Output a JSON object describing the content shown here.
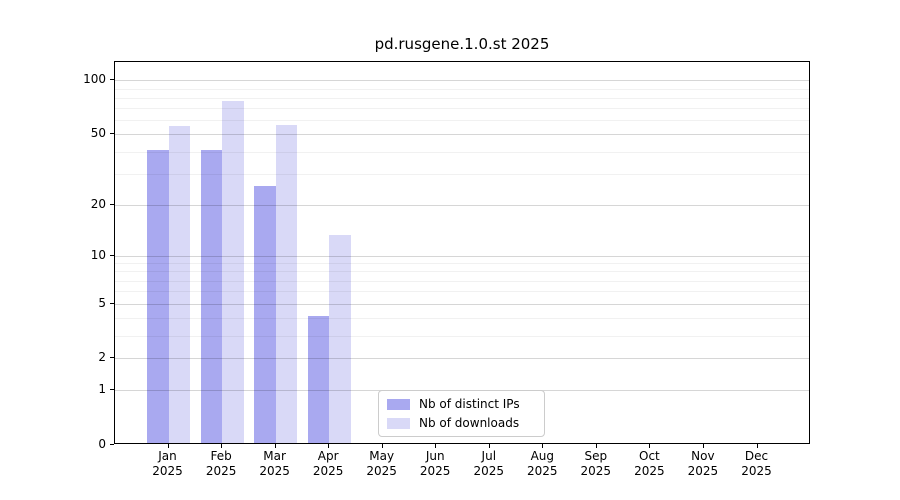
{
  "chart_data": {
    "type": "bar",
    "title": "pd.rusgene.1.0.st 2025",
    "categories": [
      "Jan",
      "Feb",
      "Mar",
      "Apr",
      "May",
      "Jun",
      "Jul",
      "Aug",
      "Sep",
      "Oct",
      "Nov",
      "Dec"
    ],
    "year_label": "2025",
    "series": [
      {
        "name": "Nb of distinct IPs",
        "color": "#a9a9f0",
        "values": [
          40,
          40,
          25,
          4,
          0,
          0,
          0,
          0,
          0,
          0,
          0,
          0
        ]
      },
      {
        "name": "Nb of downloads",
        "color": "#d9d9f7",
        "values": [
          54,
          75,
          55,
          13,
          0,
          0,
          0,
          0,
          0,
          0,
          0,
          0
        ]
      }
    ],
    "yscale": "log10(1+v)",
    "yticks": [
      0,
      1,
      2,
      5,
      10,
      20,
      50,
      100
    ],
    "minor_gridlines": [
      3,
      4,
      6,
      7,
      8,
      9,
      30,
      40,
      60,
      70,
      80,
      90
    ],
    "ylim": [
      0,
      126.5
    ],
    "grid": "horizontal-major-and-minor",
    "legend_position": "lower center",
    "axis_color": "#000000",
    "background_color": "#ffffff"
  }
}
